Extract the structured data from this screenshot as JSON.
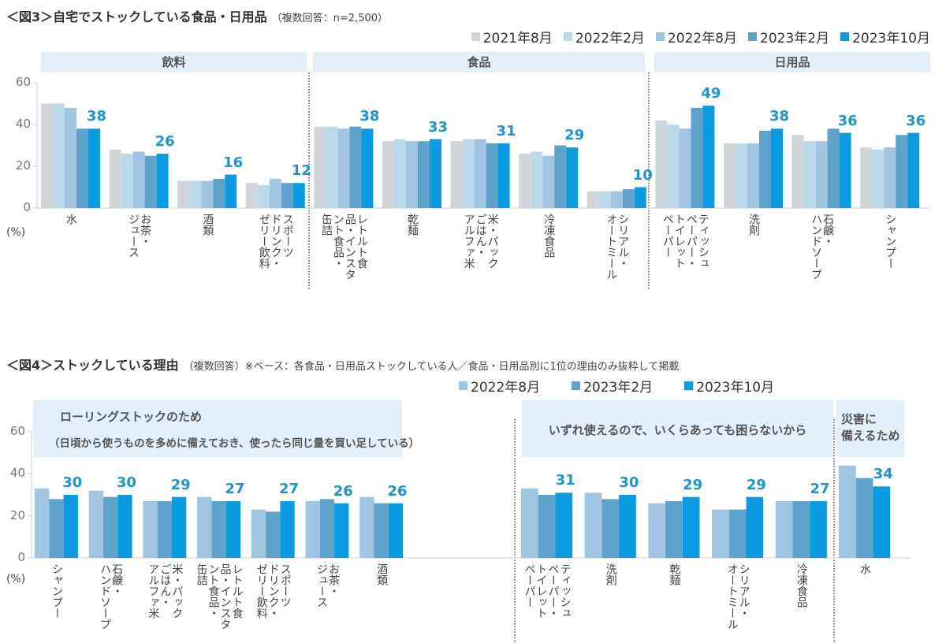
{
  "chart_data": [
    {
      "type": "bar",
      "title": "＜図3＞自宅でストックしている食品・日用品",
      "subtitle": "（複数回答：n=2,500）",
      "ylabel": "(%)",
      "ylim": [
        0,
        60
      ],
      "yticks": [
        "0",
        "20",
        "40",
        "60"
      ],
      "grid": false,
      "legend_position": "top-right",
      "groups": [
        {
          "name": "飲料",
          "count": 4
        },
        {
          "name": "食品",
          "count": 5
        },
        {
          "name": "日用品",
          "count": 4
        }
      ],
      "categories": [
        [
          "水"
        ],
        [
          "お茶・",
          "ジュース"
        ],
        [
          "酒類"
        ],
        [
          "スポーツ",
          "ドリンク・",
          "ゼリー飲料"
        ],
        [
          "レトルト食",
          "品・インスタ",
          "ント食品・",
          "缶詰"
        ],
        [
          "乾麺"
        ],
        [
          "米・パック",
          "ごはん・",
          "アルファ米"
        ],
        [
          "冷凍食品"
        ],
        [
          "シリアル・",
          "オートミール"
        ],
        [
          "ティッシュ",
          "ペーパー・",
          "トイレット",
          "ペーパー"
        ],
        [
          "洗剤"
        ],
        [
          "石鹸・",
          "ハンドソープ"
        ],
        [
          "シャンプー"
        ]
      ],
      "series": [
        {
          "name": "2021年8月",
          "color": "#d0d5da",
          "values": [
            50,
            28,
            13,
            12,
            39,
            32,
            32,
            26,
            8,
            42,
            31,
            35,
            29
          ]
        },
        {
          "name": "2022年2月",
          "color": "#bcd9ea",
          "values": [
            50,
            26,
            13,
            11,
            39,
            33,
            33,
            27,
            8,
            40,
            31,
            32,
            28
          ]
        },
        {
          "name": "2022年8月",
          "color": "#9fc5e0",
          "values": [
            48,
            27,
            13,
            14,
            38,
            32,
            33,
            25,
            8,
            38,
            31,
            32,
            29
          ]
        },
        {
          "name": "2023年2月",
          "color": "#5ea3cc",
          "values": [
            38,
            25,
            14,
            12,
            39,
            32,
            31,
            30,
            9,
            48,
            37,
            38,
            35
          ]
        },
        {
          "name": "2023年10月",
          "color": "#0a9be0",
          "values": [
            38,
            26,
            16,
            12,
            38,
            33,
            31,
            29,
            10,
            49,
            38,
            36,
            36
          ]
        }
      ],
      "data_labels": [
        "38",
        "26",
        "16",
        "12",
        "38",
        "33",
        "31",
        "29",
        "10",
        "49",
        "38",
        "36",
        "36"
      ]
    },
    {
      "type": "bar",
      "title": "＜図4＞ストックしている理由",
      "subtitle": "（複数回答）※ベース：各食品・日用品ストックしている人／食品・日用品別に1位の理由のみ抜粋して掲載",
      "ylabel": "(%)",
      "ylim": [
        0,
        60
      ],
      "yticks": [
        "0",
        "20",
        "40",
        "60"
      ],
      "grid": false,
      "legend_position": "top-right",
      "groups": [
        {
          "name": "ローリングストックのため",
          "note": "（日頃から使うものを多めに備えておき、使ったら同じ量を買い足している）",
          "count": 7
        },
        {
          "name": "いずれ使えるので、いくらあっても困らないから",
          "count": 5
        },
        {
          "name": "災害に\n備えるため",
          "count": 1
        }
      ],
      "categories": [
        [
          "シャンプー"
        ],
        [
          "石鹸・",
          "ハンドソープ"
        ],
        [
          "米・パック",
          "ごはん・",
          "アルファ米"
        ],
        [
          "レトルト食",
          "品・インスタ",
          "ント食品・",
          "缶詰"
        ],
        [
          "スポーツ",
          "ドリンク・",
          "ゼリー飲料"
        ],
        [
          "お茶・",
          "ジュース"
        ],
        [
          "酒類"
        ],
        [
          "ティッシュ",
          "ペーパー・",
          "トイレット",
          "ペーパー"
        ],
        [
          "洗剤"
        ],
        [
          "乾麺"
        ],
        [
          "シリアル・",
          "オートミール"
        ],
        [
          "冷凍食品"
        ],
        [
          "水"
        ]
      ],
      "series": [
        {
          "name": "2022年8月",
          "color": "#9fc5e0",
          "values": [
            33,
            32,
            27,
            29,
            23,
            27,
            29,
            33,
            31,
            26,
            23,
            27,
            44
          ]
        },
        {
          "name": "2023年2月",
          "color": "#5ea3cc",
          "values": [
            28,
            29,
            27,
            27,
            22,
            28,
            26,
            30,
            28,
            27,
            23,
            27,
            38
          ]
        },
        {
          "name": "2023年10月",
          "color": "#0a9be0",
          "values": [
            30,
            30,
            29,
            27,
            27,
            26,
            26,
            31,
            30,
            29,
            29,
            27,
            34
          ]
        }
      ],
      "data_labels": [
        "30",
        "30",
        "29",
        "27",
        "27",
        "26",
        "26",
        "31",
        "30",
        "29",
        "29",
        "27",
        "34"
      ]
    }
  ]
}
